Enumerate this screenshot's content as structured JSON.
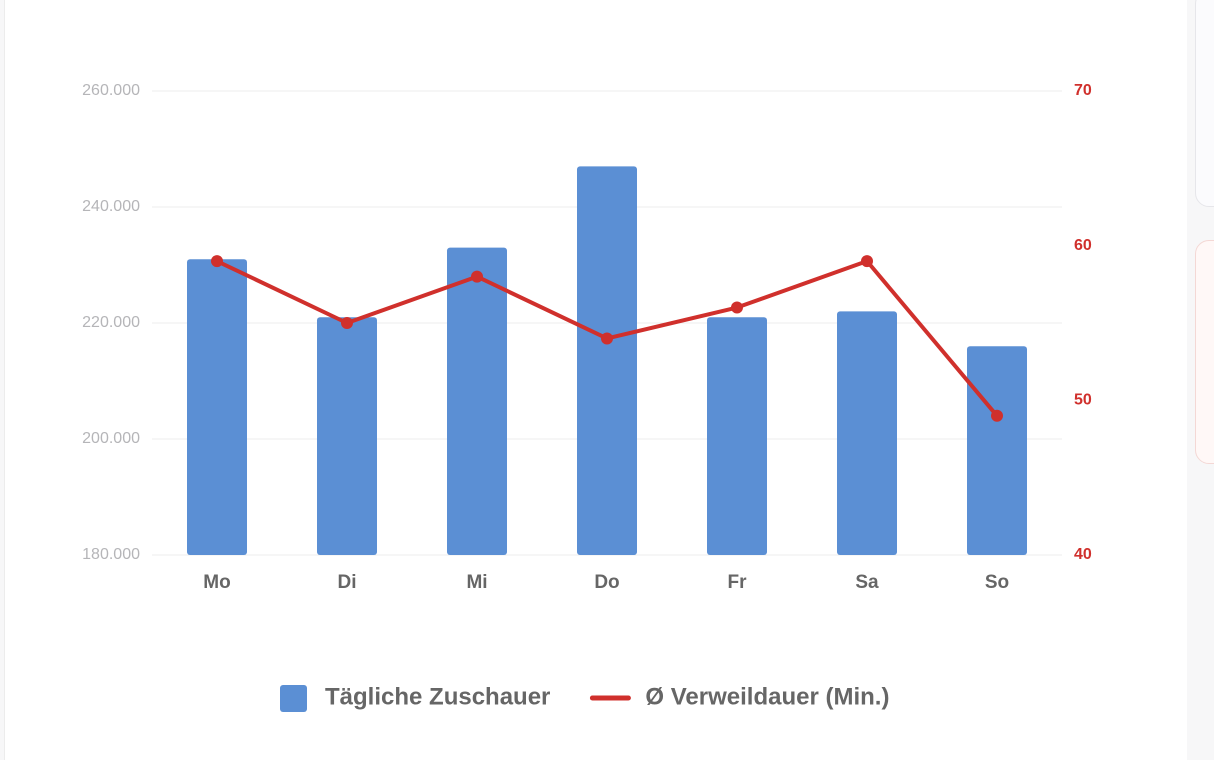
{
  "chart_data": {
    "type": "bar",
    "categories": [
      "Mo",
      "Di",
      "Mi",
      "Do",
      "Fr",
      "Sa",
      "So"
    ],
    "series": [
      {
        "name": "Tägliche Zuschauer",
        "type": "bar",
        "color": "#5b8fd4",
        "values": [
          231000,
          221000,
          233000,
          247000,
          221000,
          222000,
          216000
        ]
      },
      {
        "name": "Ø Verweildauer (Min.)",
        "type": "line",
        "axis": "y2",
        "color": "#d0302c",
        "values": [
          59,
          55,
          58,
          54,
          56,
          59,
          49
        ]
      }
    ],
    "ylim": [
      180000,
      260000
    ],
    "yticks": [
      {
        "value": 180000,
        "label": "180.000"
      },
      {
        "value": 200000,
        "label": "200.000"
      },
      {
        "value": 220000,
        "label": "220.000"
      },
      {
        "value": 240000,
        "label": "240.000"
      },
      {
        "value": 260000,
        "label": "260.000"
      }
    ],
    "y2lim": [
      40,
      70
    ],
    "y2ticks": [
      40,
      50,
      60,
      70
    ],
    "grid": true
  }
}
